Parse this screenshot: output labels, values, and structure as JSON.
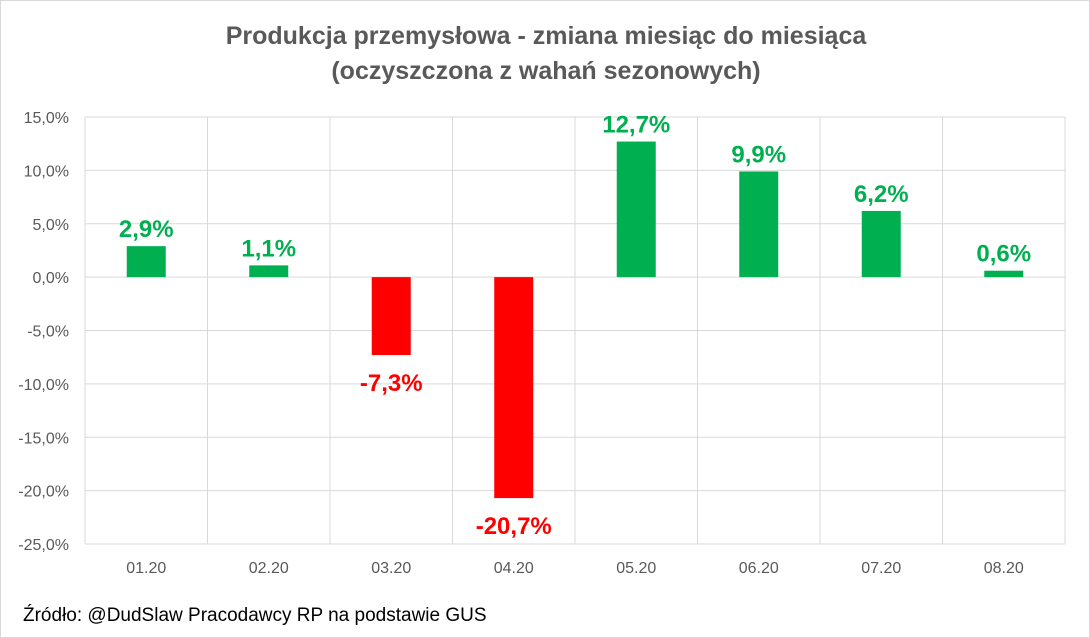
{
  "chart_data": {
    "type": "bar",
    "title": "Produkcja przemysłowa - zmiana miesiąc do miesiąca",
    "subtitle": "(oczyszczona z wahań sezonowych)",
    "categories": [
      "01.20",
      "02.20",
      "03.20",
      "04.20",
      "05.20",
      "06.20",
      "07.20",
      "08.20"
    ],
    "values": [
      2.9,
      1.1,
      -7.3,
      -20.7,
      12.7,
      9.9,
      6.2,
      0.6
    ],
    "data_labels": [
      "2,9%",
      "1,1%",
      "-7,3%",
      "-20,7%",
      "12,7%",
      "9,9%",
      "6,2%",
      "0,6%"
    ],
    "ylim": [
      -25,
      15
    ],
    "y_ticks": [
      15,
      10,
      5,
      0,
      -5,
      -10,
      -15,
      -20,
      -25
    ],
    "y_tick_labels": [
      "15,0%",
      "10,0%",
      "5,0%",
      "0,0%",
      "-5,0%",
      "-10,0%",
      "-15,0%",
      "-20,0%",
      "-25,0%"
    ],
    "grid": true,
    "xlabel": "",
    "ylabel": "",
    "colors": {
      "positive": "#00b050",
      "negative": "#ff0000",
      "grid": "#d9d9d9",
      "text": "#595959"
    }
  },
  "source": "Źródło: @DudSlaw Pracodawcy RP na podstawie GUS"
}
